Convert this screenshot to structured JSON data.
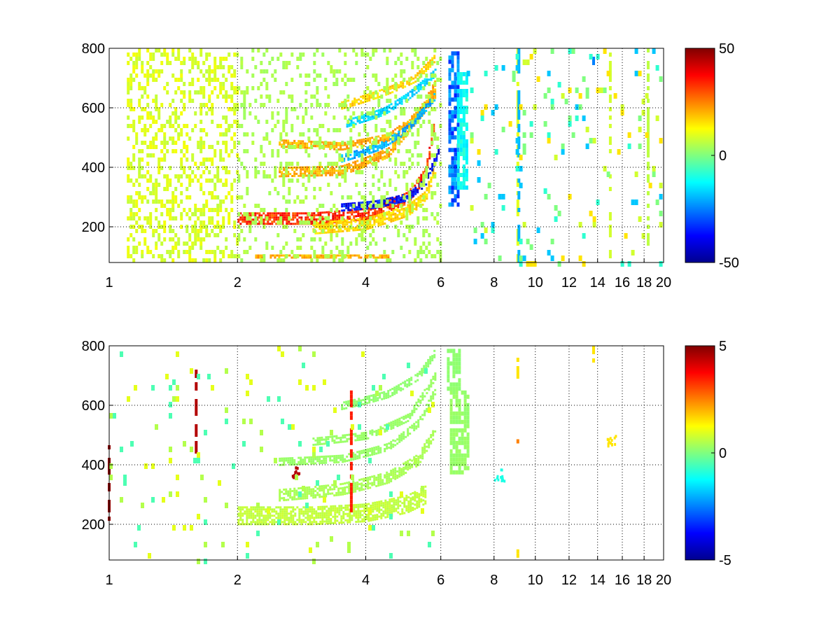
{
  "chart_data": [
    {
      "type": "heatmap",
      "title": "",
      "xlabel": "",
      "ylabel": "",
      "xscale": "log",
      "xlim": [
        1,
        20
      ],
      "ylim": [
        80,
        800
      ],
      "xticks": [
        1,
        2,
        4,
        6,
        8,
        10,
        12,
        14,
        16,
        18,
        20
      ],
      "xtick_labels": [
        "1",
        "2",
        "4",
        "6",
        "8",
        "10",
        "12",
        "14",
        "16",
        "18",
        "20"
      ],
      "yticks": [
        200,
        400,
        600,
        800
      ],
      "ytick_labels": [
        "200",
        "400",
        "600",
        "800"
      ],
      "grid": "dotted",
      "colormap": "jet",
      "colorbar": {
        "clim": [
          -50,
          50
        ],
        "ticks": [
          -50,
          0,
          50
        ],
        "tick_labels": [
          "-50",
          "0",
          "50"
        ]
      },
      "features": [
        {
          "shape": "curve",
          "x": [
            2.0,
            3.0,
            4.0,
            5.0,
            5.5,
            5.8
          ],
          "y": [
            230,
            230,
            245,
            300,
            380,
            560
          ],
          "value": 40,
          "width": 16
        },
        {
          "shape": "curve",
          "x": [
            3.0,
            4.0,
            5.0,
            5.5,
            5.8
          ],
          "y": [
            195,
            210,
            255,
            300,
            400
          ],
          "value": 20,
          "width": 18
        },
        {
          "shape": "curve",
          "x": [
            3.5,
            4.2,
            5.0,
            5.5,
            5.9
          ],
          "y": [
            265,
            275,
            300,
            350,
            450
          ],
          "value": -45,
          "width": 12
        },
        {
          "shape": "curve",
          "x": [
            2.5,
            3.5,
            4.5,
            5.2,
            5.8
          ],
          "y": [
            385,
            390,
            450,
            560,
            650
          ],
          "value": 25,
          "width": 14
        },
        {
          "shape": "curve",
          "x": [
            2.5,
            3.5,
            4.5,
            5.3,
            5.8
          ],
          "y": [
            480,
            470,
            500,
            580,
            680
          ],
          "value": 25,
          "width": 12
        },
        {
          "shape": "curve",
          "x": [
            3.5,
            4.3,
            5.0,
            5.8
          ],
          "y": [
            430,
            470,
            530,
            640
          ],
          "value": -25,
          "width": 12
        },
        {
          "shape": "curve",
          "x": [
            3.6,
            4.4,
            5.0,
            5.8
          ],
          "y": [
            550,
            590,
            640,
            720
          ],
          "value": -20,
          "width": 10
        },
        {
          "shape": "curve",
          "x": [
            3.5,
            4.5,
            5.2,
            5.8
          ],
          "y": [
            610,
            660,
            700,
            770
          ],
          "value": 20,
          "width": 10
        },
        {
          "shape": "curve",
          "x": [
            2.2,
            3.5,
            4.5
          ],
          "y": [
            100,
            100,
            100
          ],
          "value": 25,
          "width": 6
        },
        {
          "shape": "band",
          "x0": 6.25,
          "x1": 6.55,
          "y0": 280,
          "y1": 790,
          "value": -35
        },
        {
          "shape": "band",
          "x0": 6.55,
          "x1": 6.95,
          "y0": 330,
          "y1": 720,
          "value": -15
        },
        {
          "shape": "band",
          "x0": 1.1,
          "x1": 2.0,
          "y0": 80,
          "y1": 800,
          "value": 12,
          "density": 0.35
        },
        {
          "shape": "band",
          "x0": 2.0,
          "x1": 6.0,
          "y0": 80,
          "y1": 800,
          "value": 6,
          "density": 0.2
        },
        {
          "shape": "column",
          "x": 9.1,
          "y0": 80,
          "y1": 800,
          "value": 10
        },
        {
          "shape": "column",
          "x": 9.15,
          "y0": 80,
          "y1": 800,
          "value": -20
        },
        {
          "shape": "column",
          "x": 13.7,
          "y0": 730,
          "y1": 800,
          "value": -25
        },
        {
          "shape": "column",
          "x": 15.0,
          "y0": 80,
          "y1": 800,
          "value": 8
        },
        {
          "shape": "column",
          "x": 18.4,
          "y0": 80,
          "y1": 800,
          "value": 6
        }
      ],
      "sparse": {
        "x_range": [
          6.9,
          20
        ],
        "y_range": [
          80,
          800
        ],
        "density": 0.07,
        "values": [
          -18,
          -8,
          0,
          8,
          15
        ]
      }
    },
    {
      "type": "heatmap",
      "title": "",
      "xlabel": "",
      "ylabel": "",
      "xscale": "log",
      "xlim": [
        1,
        20
      ],
      "ylim": [
        80,
        800
      ],
      "xticks": [
        1,
        2,
        4,
        6,
        8,
        10,
        12,
        14,
        16,
        18,
        20
      ],
      "xtick_labels": [
        "1",
        "2",
        "4",
        "6",
        "8",
        "10",
        "12",
        "14",
        "16",
        "18",
        "20"
      ],
      "yticks": [
        200,
        400,
        600,
        800
      ],
      "ytick_labels": [
        "200",
        "400",
        "600",
        "800"
      ],
      "grid": "dotted",
      "colormap": "jet",
      "colorbar": {
        "clim": [
          -5,
          5
        ],
        "ticks": [
          -5,
          0,
          5
        ],
        "tick_labels": [
          "-5",
          "0",
          "5"
        ]
      },
      "features": [
        {
          "shape": "curve",
          "x": [
            2.0,
            3.0,
            4.0,
            5.0,
            5.5
          ],
          "y": [
            230,
            230,
            240,
            270,
            300
          ],
          "value": 0.8,
          "width": 26
        },
        {
          "shape": "curve",
          "x": [
            2.5,
            3.5,
            4.5,
            5.3,
            5.8
          ],
          "y": [
            300,
            320,
            360,
            420,
            520
          ],
          "value": 0.5,
          "width": 16
        },
        {
          "shape": "curve",
          "x": [
            2.5,
            3.5,
            4.5,
            5.3,
            5.8
          ],
          "y": [
            410,
            420,
            460,
            540,
            650
          ],
          "value": 0.3,
          "width": 12
        },
        {
          "shape": "curve",
          "x": [
            3.0,
            4.0,
            5.0,
            5.8
          ],
          "y": [
            480,
            500,
            560,
            700
          ],
          "value": 0.3,
          "width": 10
        },
        {
          "shape": "curve",
          "x": [
            3.5,
            4.5,
            5.3,
            5.8
          ],
          "y": [
            600,
            640,
            700,
            780
          ],
          "value": 0.2,
          "width": 10
        },
        {
          "shape": "band",
          "x0": 6.3,
          "x1": 6.9,
          "y0": 380,
          "y1": 650,
          "value": 0.3
        },
        {
          "shape": "band",
          "x0": 6.2,
          "x1": 6.6,
          "y0": 650,
          "y1": 790,
          "value": 0.2
        },
        {
          "shape": "spot",
          "x": 2.75,
          "y": 380,
          "value": 4.5
        },
        {
          "shape": "column",
          "x": 1.6,
          "y0": 400,
          "y1": 720,
          "value": 4.5
        },
        {
          "shape": "column",
          "x": 1.0,
          "y0": 210,
          "y1": 480,
          "value": 4.8
        },
        {
          "shape": "column",
          "x": 3.7,
          "y0": 250,
          "y1": 650,
          "value": 3.5
        },
        {
          "shape": "column",
          "x": 9.1,
          "y0": 450,
          "y1": 500,
          "value": 2.5
        },
        {
          "shape": "column",
          "x": 9.1,
          "y0": 700,
          "y1": 760,
          "value": 1.5
        },
        {
          "shape": "column",
          "x": 9.1,
          "y0": 100,
          "y1": 130,
          "value": 1.5
        },
        {
          "shape": "column",
          "x": 13.7,
          "y0": 730,
          "y1": 800,
          "value": 1.5
        },
        {
          "shape": "spot",
          "x": 15.0,
          "y": 480,
          "value": 1.5
        },
        {
          "shape": "spot",
          "x": 8.2,
          "y": 370,
          "value": -1.0
        }
      ],
      "sparse": {
        "x_range": [
          1.0,
          6.0
        ],
        "y_range": [
          80,
          800
        ],
        "density": 0.04,
        "values": [
          0.5,
          1.0,
          -0.5
        ]
      }
    }
  ]
}
